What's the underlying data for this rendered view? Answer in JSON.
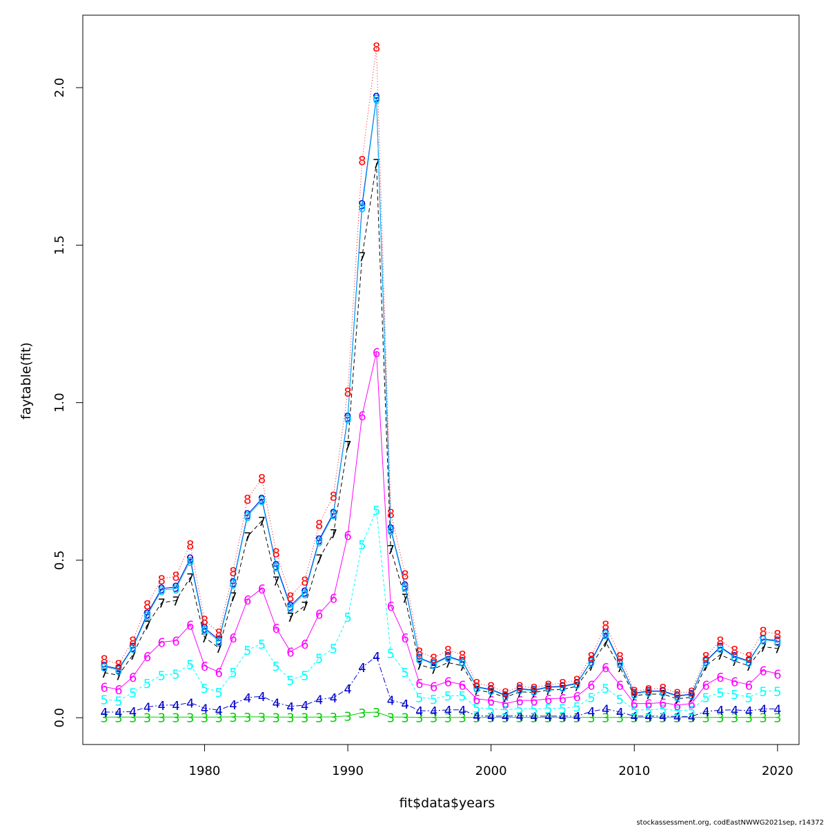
{
  "chart_data": {
    "type": "line",
    "xlabel": "fit$data$years",
    "ylabel": "faytable(fit)",
    "xlim": [
      1971.5,
      2021.5
    ],
    "ylim": [
      -0.085,
      2.23
    ],
    "xticks": [
      1980,
      1990,
      2000,
      2010,
      2020
    ],
    "yticks": [
      0.0,
      0.5,
      1.0,
      1.5,
      2.0
    ],
    "ytick_labels": [
      "0.0",
      "0.5",
      "1.0",
      "1.5",
      "2.0"
    ],
    "x": [
      1973,
      1974,
      1975,
      1976,
      1977,
      1978,
      1979,
      1980,
      1981,
      1982,
      1983,
      1984,
      1985,
      1986,
      1987,
      1988,
      1989,
      1990,
      1991,
      1992,
      1993,
      1994,
      1995,
      1996,
      1997,
      1998,
      1999,
      2000,
      2001,
      2002,
      2003,
      2004,
      2005,
      2006,
      2007,
      2008,
      2009,
      2010,
      2011,
      2012,
      2013,
      2014,
      2015,
      2016,
      2017,
      2018,
      2019,
      2020
    ],
    "series": [
      {
        "name": "3",
        "symbol": "3",
        "color": "#00cd00",
        "dash": "",
        "values": [
          0.002,
          0.002,
          0.002,
          0.002,
          0.002,
          0.002,
          0.002,
          0.002,
          0.002,
          0.003,
          0.003,
          0.003,
          0.002,
          0.002,
          0.002,
          0.002,
          0.003,
          0.006,
          0.016,
          0.018,
          0.002,
          0.002,
          0.001,
          0.001,
          0.001,
          0.001,
          0.001,
          0.001,
          0.001,
          0.001,
          0.001,
          0.001,
          0.001,
          0.001,
          0.001,
          0.001,
          0.001,
          0.001,
          0.001,
          0.001,
          0.001,
          0.001,
          0.001,
          0.001,
          0.001,
          0.001,
          0.001,
          0.001
        ]
      },
      {
        "name": "4",
        "symbol": "4",
        "color": "#0000cd",
        "dash": "8,3,2,3",
        "values": [
          0.018,
          0.018,
          0.02,
          0.034,
          0.04,
          0.04,
          0.048,
          0.03,
          0.024,
          0.042,
          0.064,
          0.068,
          0.048,
          0.036,
          0.04,
          0.058,
          0.064,
          0.092,
          0.16,
          0.195,
          0.056,
          0.044,
          0.022,
          0.022,
          0.025,
          0.025,
          0.006,
          0.005,
          0.005,
          0.006,
          0.005,
          0.005,
          0.005,
          0.005,
          0.02,
          0.028,
          0.018,
          0.005,
          0.005,
          0.005,
          0.004,
          0.004,
          0.02,
          0.024,
          0.025,
          0.022,
          0.028,
          0.028
        ]
      },
      {
        "name": "5",
        "symbol": "5",
        "color": "#00ffff",
        "dash": "4,3",
        "values": [
          0.058,
          0.054,
          0.08,
          0.11,
          0.135,
          0.14,
          0.17,
          0.095,
          0.082,
          0.145,
          0.215,
          0.235,
          0.165,
          0.12,
          0.135,
          0.19,
          0.22,
          0.32,
          0.55,
          0.66,
          0.205,
          0.145,
          0.065,
          0.06,
          0.07,
          0.07,
          0.032,
          0.028,
          0.025,
          0.03,
          0.028,
          0.03,
          0.03,
          0.035,
          0.065,
          0.095,
          0.06,
          0.025,
          0.025,
          0.028,
          0.022,
          0.025,
          0.065,
          0.08,
          0.075,
          0.065,
          0.085,
          0.085
        ]
      },
      {
        "name": "6",
        "symbol": "6",
        "color": "#ff00ff",
        "dash": "",
        "values": [
          0.098,
          0.09,
          0.13,
          0.195,
          0.24,
          0.245,
          0.295,
          0.165,
          0.145,
          0.255,
          0.375,
          0.41,
          0.285,
          0.21,
          0.235,
          0.33,
          0.38,
          0.58,
          0.96,
          1.16,
          0.355,
          0.255,
          0.11,
          0.1,
          0.115,
          0.105,
          0.06,
          0.055,
          0.045,
          0.055,
          0.055,
          0.06,
          0.062,
          0.068,
          0.105,
          0.16,
          0.105,
          0.045,
          0.045,
          0.048,
          0.04,
          0.045,
          0.105,
          0.13,
          0.115,
          0.105,
          0.15,
          0.14
        ]
      },
      {
        "name": "7",
        "symbol": "7",
        "color": "#000000",
        "dash": "6,4",
        "values": [
          0.143,
          0.135,
          0.2,
          0.295,
          0.365,
          0.372,
          0.445,
          0.255,
          0.222,
          0.385,
          0.575,
          0.625,
          0.435,
          0.32,
          0.355,
          0.505,
          0.585,
          0.865,
          1.465,
          1.76,
          0.535,
          0.38,
          0.168,
          0.155,
          0.175,
          0.165,
          0.088,
          0.08,
          0.065,
          0.082,
          0.08,
          0.088,
          0.09,
          0.1,
          0.165,
          0.24,
          0.16,
          0.07,
          0.075,
          0.075,
          0.06,
          0.065,
          0.165,
          0.2,
          0.18,
          0.165,
          0.225,
          0.22
        ]
      },
      {
        "name": "9",
        "symbol": "9",
        "color": "#0000cd",
        "dash": "",
        "values": [
          0.165,
          0.155,
          0.225,
          0.33,
          0.41,
          0.415,
          0.505,
          0.285,
          0.248,
          0.43,
          0.645,
          0.695,
          0.485,
          0.355,
          0.4,
          0.565,
          0.65,
          0.955,
          1.63,
          1.97,
          0.6,
          0.42,
          0.19,
          0.172,
          0.195,
          0.18,
          0.098,
          0.09,
          0.072,
          0.092,
          0.088,
          0.098,
          0.1,
          0.11,
          0.18,
          0.27,
          0.175,
          0.078,
          0.085,
          0.085,
          0.07,
          0.075,
          0.18,
          0.225,
          0.195,
          0.18,
          0.25,
          0.245
        ]
      },
      {
        "name": "0",
        "symbol": "0",
        "color": "#00bfff",
        "dash": "",
        "values": [
          0.162,
          0.152,
          0.222,
          0.325,
          0.405,
          0.41,
          0.498,
          0.28,
          0.244,
          0.425,
          0.64,
          0.69,
          0.48,
          0.35,
          0.395,
          0.56,
          0.645,
          0.95,
          1.62,
          1.965,
          0.595,
          0.415,
          0.188,
          0.17,
          0.192,
          0.178,
          0.096,
          0.088,
          0.07,
          0.09,
          0.086,
          0.096,
          0.098,
          0.108,
          0.178,
          0.265,
          0.172,
          0.076,
          0.083,
          0.083,
          0.068,
          0.073,
          0.178,
          0.222,
          0.192,
          0.178,
          0.248,
          0.242
        ]
      },
      {
        "name": "8",
        "symbol": "8",
        "color": "#ff0000",
        "dash": "1,3",
        "values": [
          0.185,
          0.17,
          0.245,
          0.36,
          0.44,
          0.45,
          0.55,
          0.31,
          0.27,
          0.465,
          0.695,
          0.76,
          0.525,
          0.385,
          0.435,
          0.615,
          0.705,
          1.035,
          1.77,
          2.13,
          0.65,
          0.455,
          0.21,
          0.19,
          0.215,
          0.2,
          0.11,
          0.1,
          0.08,
          0.1,
          0.095,
          0.105,
          0.11,
          0.12,
          0.195,
          0.295,
          0.195,
          0.085,
          0.09,
          0.095,
          0.078,
          0.083,
          0.195,
          0.245,
          0.215,
          0.195,
          0.275,
          0.265
        ]
      }
    ]
  },
  "footer": {
    "credit": "stockassessment.org, codEastNWWG2021sep, r14372"
  }
}
